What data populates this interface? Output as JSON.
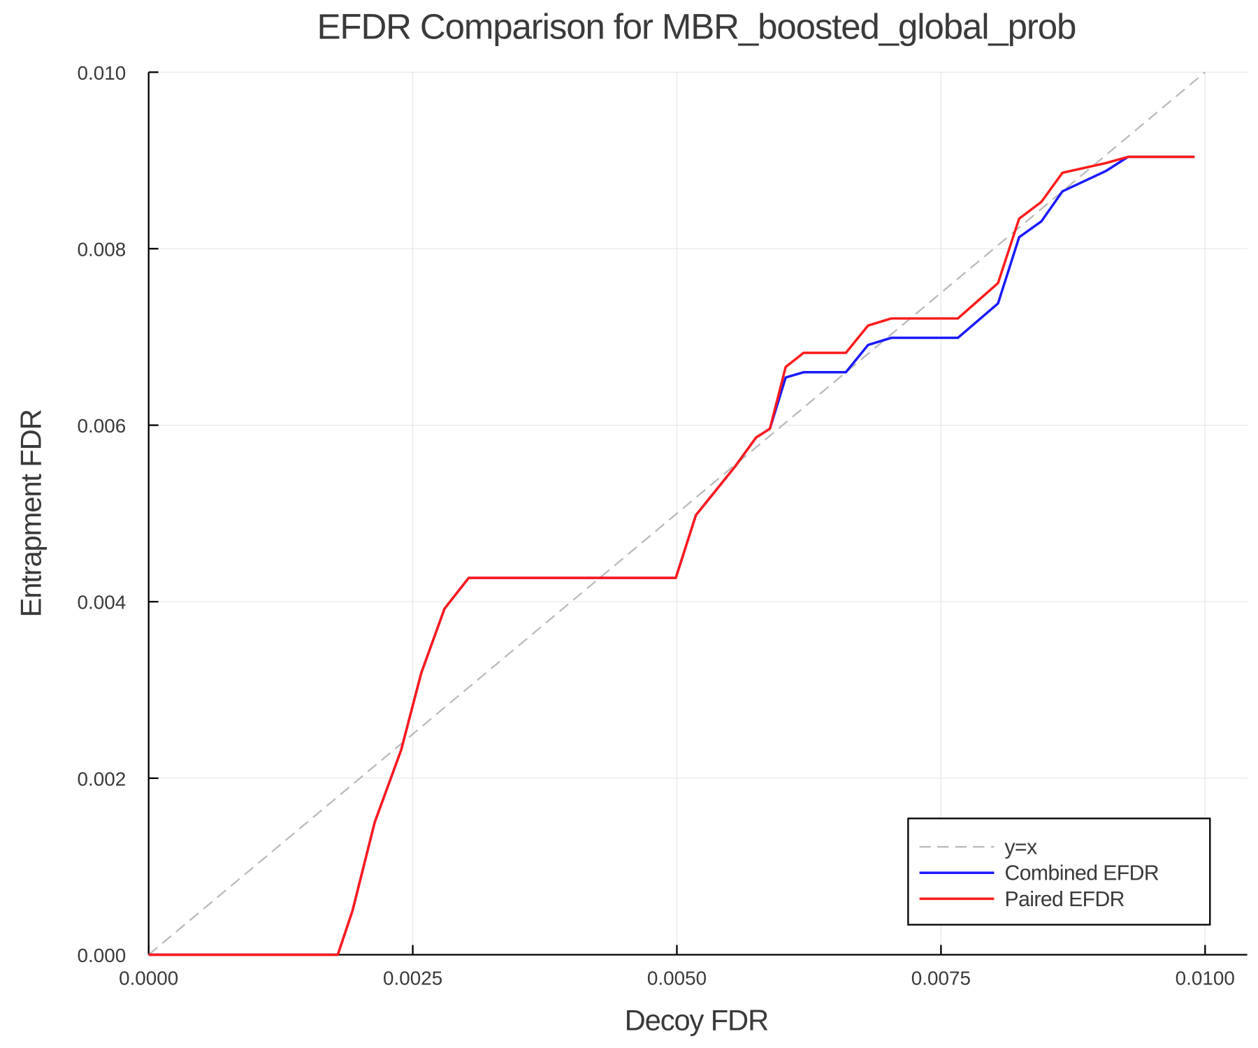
{
  "chart_data": {
    "type": "line",
    "title": "EFDR Comparison for MBR_boosted_global_prob",
    "xlabel": "Decoy FDR",
    "ylabel": "Entrapment FDR",
    "xlim": [
      0,
      0.0104
    ],
    "ylim": [
      0,
      0.01
    ],
    "grid": true,
    "legend_position": "bottom-right",
    "xticks": [
      "0.0000",
      "0.0025",
      "0.0050",
      "0.0075",
      "0.0100"
    ],
    "xtick_values": [
      0,
      0.0025,
      0.005,
      0.0075,
      0.01
    ],
    "yticks": [
      "0.000",
      "0.002",
      "0.004",
      "0.006",
      "0.008",
      "0.010"
    ],
    "ytick_values": [
      0,
      0.002,
      0.004,
      0.006,
      0.008,
      0.01
    ],
    "series": [
      {
        "name": "y=x",
        "color": "#bbbbbb",
        "dash": true,
        "x": [
          0,
          0.01
        ],
        "y": [
          0,
          0.01
        ]
      },
      {
        "name": "Combined EFDR",
        "color": "#1a1aff",
        "x": [
          0,
          0.00179,
          0.00193,
          0.00214,
          0.00239,
          0.00258,
          0.0028,
          0.00303,
          0.00499,
          0.00518,
          0.00555,
          0.00575,
          0.00588,
          0.00603,
          0.0062,
          0.0066,
          0.00681,
          0.00703,
          0.00766,
          0.00804,
          0.00824,
          0.00845,
          0.00865,
          0.00906,
          0.00927,
          0.0099
        ],
        "y": [
          0,
          0,
          0.0005,
          0.0015,
          0.00232,
          0.00319,
          0.00392,
          0.00427,
          0.00427,
          0.00498,
          0.00553,
          0.00586,
          0.00596,
          0.00654,
          0.0066,
          0.0066,
          0.00691,
          0.00699,
          0.00699,
          0.00738,
          0.00813,
          0.00831,
          0.00865,
          0.00888,
          0.00904,
          0.00904
        ]
      },
      {
        "name": "Paired EFDR",
        "color": "#ff1a1a",
        "x": [
          0,
          0.00179,
          0.00193,
          0.00214,
          0.00239,
          0.00258,
          0.0028,
          0.00303,
          0.00499,
          0.00518,
          0.00555,
          0.00575,
          0.00588,
          0.00603,
          0.0062,
          0.0066,
          0.00681,
          0.00703,
          0.00766,
          0.00804,
          0.00824,
          0.00845,
          0.00865,
          0.00906,
          0.00927,
          0.0099
        ],
        "y": [
          0,
          0,
          0.0005,
          0.0015,
          0.00232,
          0.00319,
          0.00392,
          0.00427,
          0.00427,
          0.00498,
          0.00553,
          0.00586,
          0.00596,
          0.00666,
          0.00682,
          0.00682,
          0.00713,
          0.00721,
          0.00721,
          0.00761,
          0.00834,
          0.00853,
          0.00886,
          0.00897,
          0.00904,
          0.00904
        ]
      }
    ]
  }
}
